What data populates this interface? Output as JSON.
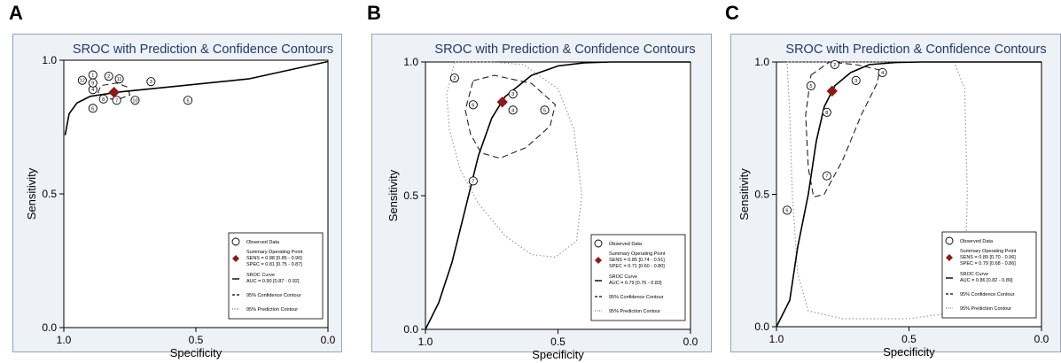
{
  "colors": {
    "title": "#1f3d6b",
    "diamond": "#8b1a1a",
    "plot_bg": "#ffffff",
    "panel_bg": "#eef1f6",
    "curve": "#000000"
  },
  "chart_data": [
    {
      "panel_label": "A",
      "type": "scatter",
      "title": "SROC with Prediction & Confidence Contours",
      "xlabel": "Specificity",
      "ylabel": "Sensitivity",
      "xlim": [
        1.0,
        0.0
      ],
      "ylim": [
        0.0,
        1.0
      ],
      "xticks": [
        "1.0",
        "0.5",
        "0.0"
      ],
      "yticks": [
        "0.0",
        "0.5",
        "1.0"
      ],
      "points": [
        {
          "label": "1",
          "spec": 0.89,
          "sens": 0.945
        },
        {
          "label": "2",
          "spec": 0.83,
          "sens": 0.94
        },
        {
          "label": "3",
          "spec": 0.67,
          "sens": 0.92
        },
        {
          "label": "4",
          "spec": 0.89,
          "sens": 0.89
        },
        {
          "label": "5",
          "spec": 0.53,
          "sens": 0.85
        },
        {
          "label": "6",
          "spec": 0.89,
          "sens": 0.82
        },
        {
          "label": "7",
          "spec": 0.8,
          "sens": 0.85
        },
        {
          "label": "8",
          "spec": 0.85,
          "sens": 0.855
        },
        {
          "label": "9",
          "spec": 0.89,
          "sens": 0.915
        },
        {
          "label": "10",
          "spec": 0.73,
          "sens": 0.85
        },
        {
          "label": "11",
          "spec": 0.79,
          "sens": 0.93
        },
        {
          "label": "12",
          "spec": 0.93,
          "sens": 0.925
        }
      ],
      "summary_point": {
        "spec": 0.81,
        "sens": 0.88
      },
      "sroc_curve": [
        [
          0.0,
          0.995
        ],
        [
          0.3,
          0.93
        ],
        [
          0.6,
          0.9
        ],
        [
          0.8,
          0.88
        ],
        [
          0.9,
          0.865
        ],
        [
          0.95,
          0.84
        ],
        [
          0.98,
          0.8
        ],
        [
          0.995,
          0.72
        ]
      ],
      "confidence_contour": [
        [
          0.76,
          0.9
        ],
        [
          0.8,
          0.915
        ],
        [
          0.86,
          0.905
        ],
        [
          0.87,
          0.88
        ],
        [
          0.84,
          0.855
        ],
        [
          0.79,
          0.855
        ],
        [
          0.75,
          0.87
        ],
        [
          0.76,
          0.9
        ]
      ],
      "prediction_contour": [],
      "legend": {
        "position": "bottom-right",
        "observed": "Observed Data",
        "summary_title": "Summary Operating Point",
        "sens_line": "SENS = 0.88 [0.85 - 0.90]",
        "spec_line": "SPEC = 0.81 [0.75 - 0.87]",
        "sroc_title": "SROC Curve",
        "auc_line": "AUC = 0.90 [0.87 - 0.92]",
        "confidence": "95% Confidence Contour",
        "prediction": "95% Prediction Contour"
      }
    },
    {
      "panel_label": "B",
      "type": "scatter",
      "title": "SROC with Prediction & Confidence Contours",
      "xlabel": "Specificity",
      "ylabel": "Sensitivity",
      "xlim": [
        1.0,
        0.0
      ],
      "ylim": [
        0.0,
        1.0
      ],
      "xticks": [
        "1.0",
        "0.5",
        "0.0"
      ],
      "yticks": [
        "0.0",
        "0.5",
        "1.0"
      ],
      "points": [
        {
          "label": "2",
          "spec": 0.89,
          "sens": 0.94
        },
        {
          "label": "3",
          "spec": 0.67,
          "sens": 0.88
        },
        {
          "label": "4",
          "spec": 0.67,
          "sens": 0.82
        },
        {
          "label": "5",
          "spec": 0.55,
          "sens": 0.82
        },
        {
          "label": "6",
          "spec": 0.82,
          "sens": 0.84
        },
        {
          "label": "7",
          "spec": 0.82,
          "sens": 0.555
        }
      ],
      "summary_point": {
        "spec": 0.71,
        "sens": 0.85
      },
      "sroc_curve": [
        [
          1.0,
          0.0
        ],
        [
          0.95,
          0.1
        ],
        [
          0.9,
          0.25
        ],
        [
          0.85,
          0.45
        ],
        [
          0.8,
          0.65
        ],
        [
          0.75,
          0.79
        ],
        [
          0.7,
          0.87
        ],
        [
          0.6,
          0.95
        ],
        [
          0.5,
          0.985
        ],
        [
          0.4,
          0.997
        ],
        [
          0.3,
          1.0
        ],
        [
          0.0,
          1.0
        ]
      ],
      "confidence_contour": [
        [
          0.82,
          0.93
        ],
        [
          0.74,
          0.95
        ],
        [
          0.6,
          0.92
        ],
        [
          0.51,
          0.84
        ],
        [
          0.53,
          0.76
        ],
        [
          0.62,
          0.68
        ],
        [
          0.72,
          0.64
        ],
        [
          0.79,
          0.66
        ],
        [
          0.83,
          0.73
        ],
        [
          0.85,
          0.82
        ],
        [
          0.82,
          0.93
        ]
      ],
      "prediction_contour": [
        [
          0.89,
          1.0
        ],
        [
          0.75,
          1.0
        ],
        [
          0.63,
          0.99
        ],
        [
          0.5,
          0.9
        ],
        [
          0.44,
          0.75
        ],
        [
          0.41,
          0.5
        ],
        [
          0.43,
          0.33
        ],
        [
          0.51,
          0.27
        ],
        [
          0.6,
          0.28
        ],
        [
          0.7,
          0.35
        ],
        [
          0.8,
          0.47
        ],
        [
          0.87,
          0.6
        ],
        [
          0.91,
          0.75
        ],
        [
          0.92,
          0.88
        ],
        [
          0.89,
          1.0
        ]
      ],
      "legend": {
        "position": "bottom-right",
        "observed": "Observed Data",
        "summary_title": "Summary Operating Point",
        "sens_line": "SENS = 0.85 [0.74 - 0.91]",
        "spec_line": "SPEC = 0.71 [0.60 - 0.80]",
        "sroc_title": "SROC Curve",
        "auc_line": "AUC = 0.79 [0.76 - 0.83]",
        "confidence": "95% Confidence Contour",
        "prediction": "95% Prediction Contour"
      }
    },
    {
      "panel_label": "C",
      "type": "scatter",
      "title": "SROC with Prediction & Confidence Contours",
      "xlabel": "Specificity",
      "ylabel": "Sensitivity",
      "xlim": [
        1.0,
        0.0
      ],
      "ylim": [
        0.0,
        1.0
      ],
      "xticks": [
        "1.0",
        "0.5",
        "0.0"
      ],
      "yticks": [
        "0.0",
        "0.5",
        "1.0"
      ],
      "points": [
        {
          "label": "2",
          "spec": 0.78,
          "sens": 0.99
        },
        {
          "label": "3",
          "spec": 0.7,
          "sens": 0.93
        },
        {
          "label": "4",
          "spec": 0.6,
          "sens": 0.96
        },
        {
          "label": "5",
          "spec": 0.87,
          "sens": 0.91
        },
        {
          "label": "6",
          "spec": 0.96,
          "sens": 0.44
        },
        {
          "label": "7",
          "spec": 0.81,
          "sens": 0.57
        },
        {
          "label": "8",
          "spec": 0.81,
          "sens": 0.81
        }
      ],
      "summary_point": {
        "spec": 0.79,
        "sens": 0.89
      },
      "sroc_curve": [
        [
          1.0,
          0.0
        ],
        [
          0.95,
          0.1
        ],
        [
          0.92,
          0.3
        ],
        [
          0.88,
          0.5
        ],
        [
          0.85,
          0.7
        ],
        [
          0.82,
          0.83
        ],
        [
          0.78,
          0.91
        ],
        [
          0.72,
          0.96
        ],
        [
          0.65,
          0.99
        ],
        [
          0.55,
          0.998
        ],
        [
          0.45,
          1.0
        ],
        [
          0.0,
          1.0
        ]
      ],
      "confidence_contour": [
        [
          0.87,
          0.95
        ],
        [
          0.8,
          1.0
        ],
        [
          0.7,
          0.99
        ],
        [
          0.61,
          0.97
        ],
        [
          0.62,
          0.92
        ],
        [
          0.68,
          0.8
        ],
        [
          0.75,
          0.63
        ],
        [
          0.82,
          0.5
        ],
        [
          0.86,
          0.49
        ],
        [
          0.88,
          0.6
        ],
        [
          0.89,
          0.8
        ],
        [
          0.87,
          0.95
        ]
      ],
      "prediction_contour": [
        [
          0.96,
          1.0
        ],
        [
          0.9,
          1.0
        ],
        [
          0.6,
          1.0
        ],
        [
          0.33,
          1.0
        ],
        [
          0.29,
          0.9
        ],
        [
          0.28,
          0.5
        ],
        [
          0.29,
          0.12
        ],
        [
          0.36,
          0.05
        ],
        [
          0.5,
          0.03
        ],
        [
          0.75,
          0.03
        ],
        [
          0.88,
          0.06
        ],
        [
          0.92,
          0.2
        ],
        [
          0.94,
          0.5
        ],
        [
          0.95,
          0.8
        ],
        [
          0.96,
          1.0
        ]
      ],
      "legend": {
        "position": "bottom-right",
        "observed": "Observed Data",
        "summary_title": "Summary Operating Point",
        "sens_line": "SENS = 0.89 [0.70 - 0.96]",
        "spec_line": "SPEC = 0.79 [0.68 - 0.86]",
        "sroc_title": "SROC Curve",
        "auc_line": "AUC = 0.86 [0.82 - 0.89]",
        "confidence": "95% Confidence Contour",
        "prediction": "95% Prediction Contour"
      }
    }
  ]
}
